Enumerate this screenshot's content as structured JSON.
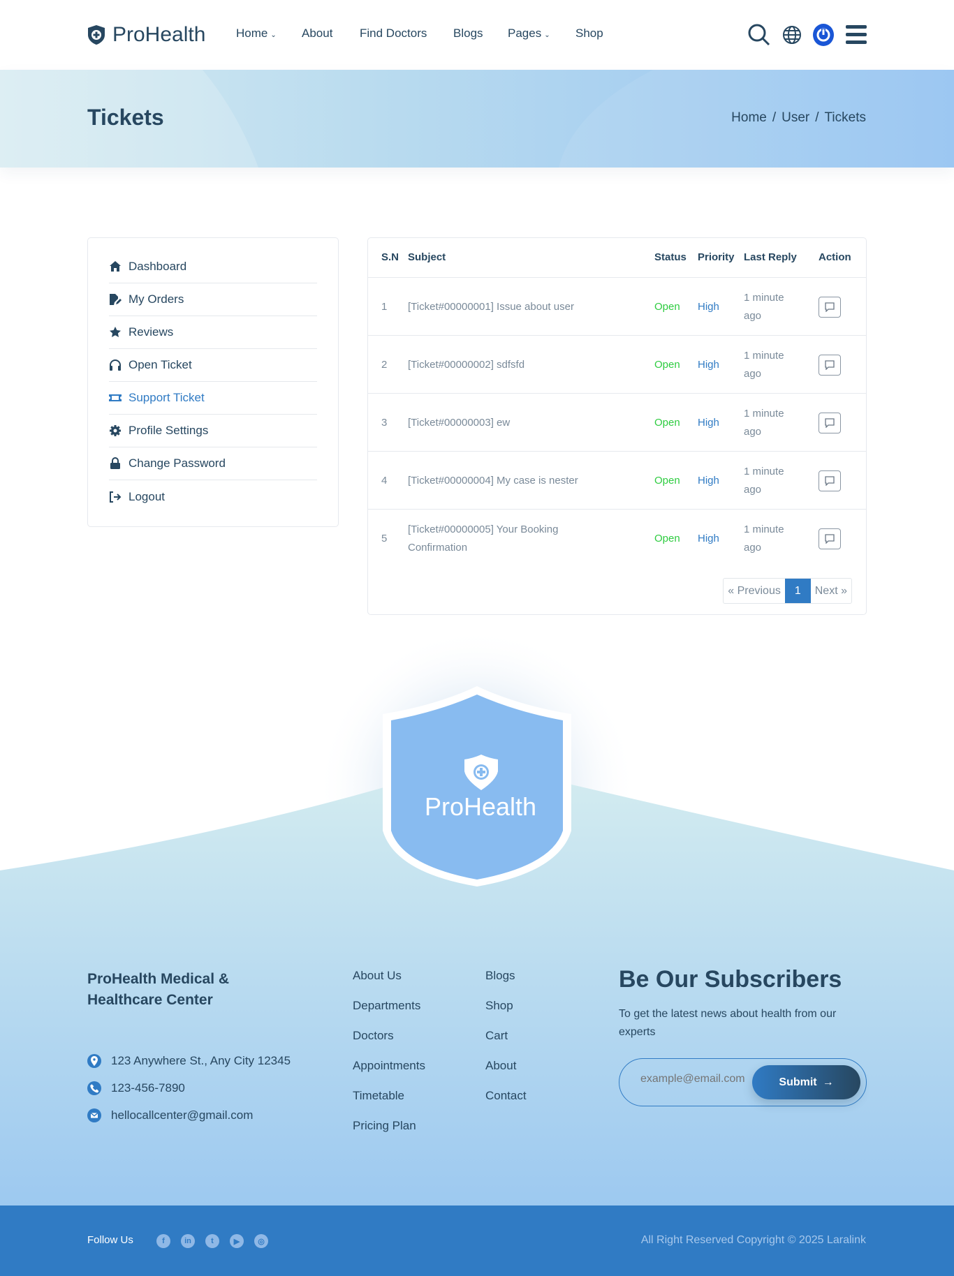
{
  "header": {
    "brand": "ProHealth",
    "nav": [
      {
        "label": "Home",
        "dropdown": true
      },
      {
        "label": "About"
      },
      {
        "label": "Find Doctors"
      },
      {
        "label": "Blogs"
      },
      {
        "label": "Pages",
        "dropdown": true
      },
      {
        "label": "Shop"
      }
    ],
    "icons": [
      "search-icon",
      "globe-icon",
      "power-icon",
      "menu-icon"
    ]
  },
  "banner": {
    "title": "Tickets",
    "breadcrumb": [
      "Home",
      "User",
      "Tickets"
    ],
    "separator": "/"
  },
  "sidebar": {
    "items": [
      {
        "label": "Dashboard",
        "icon": "home-icon"
      },
      {
        "label": "My Orders",
        "icon": "file-edit-icon"
      },
      {
        "label": "Reviews",
        "icon": "star-icon"
      },
      {
        "label": "Open Ticket",
        "icon": "headphones-icon"
      },
      {
        "label": "Support Ticket",
        "icon": "ticket-icon",
        "active": true
      },
      {
        "label": "Profile Settings",
        "icon": "gear-icon"
      },
      {
        "label": "Change Password",
        "icon": "lock-icon"
      },
      {
        "label": "Logout",
        "icon": "logout-icon"
      }
    ]
  },
  "table": {
    "headers": [
      "S.N",
      "Subject",
      "Status",
      "Priority",
      "Last Reply",
      "Action"
    ],
    "rows": [
      {
        "sn": "1",
        "subject": "[Ticket#00000001] Issue about user",
        "status": "Open",
        "priority": "High",
        "last_reply": "1 minute ago"
      },
      {
        "sn": "2",
        "subject": "[Ticket#00000002] sdfsfd",
        "status": "Open",
        "priority": "High",
        "last_reply": "1 minute ago"
      },
      {
        "sn": "3",
        "subject": "[Ticket#00000003] ew",
        "status": "Open",
        "priority": "High",
        "last_reply": "1 minute ago"
      },
      {
        "sn": "4",
        "subject": "[Ticket#00000004] My case is nester",
        "status": "Open",
        "priority": "High",
        "last_reply": "1 minute ago"
      },
      {
        "sn": "5",
        "subject": "[Ticket#00000005] Your Booking Confirmation",
        "status": "Open",
        "priority": "High",
        "last_reply": "1 minute ago"
      }
    ],
    "pagination": {
      "previous": "« Previous",
      "current": "1",
      "next": "Next »"
    }
  },
  "footer": {
    "shield_brand": "ProHealth",
    "company": "ProHealth Medical & Healthcare Center",
    "contacts": [
      {
        "icon": "location-icon",
        "text": "123 Anywhere St., Any City 12345"
      },
      {
        "icon": "phone-icon",
        "text": "123-456-7890"
      },
      {
        "icon": "email-icon",
        "text": "hellocallcenter@gmail.com"
      }
    ],
    "links_col1": [
      "About Us",
      "Departments",
      "Doctors",
      "Appointments",
      "Timetable",
      "Pricing Plan"
    ],
    "links_col2": [
      "Blogs",
      "Shop",
      "Cart",
      "About",
      "Contact"
    ],
    "subscribe": {
      "title": "Be Our Subscribers",
      "text": "To get the latest news about health from our experts",
      "placeholder": "example@email.com",
      "button": "Submit"
    },
    "follow_label": "Follow Us",
    "socials": [
      "facebook-icon",
      "linkedin-icon",
      "twitter-icon",
      "youtube-icon",
      "instagram-icon"
    ],
    "copyright": "All Right Reserved Copyright © 2025 Laralink"
  },
  "colors": {
    "primary": "#307bc4",
    "dark": "#274760",
    "open": "#2ecc40",
    "accent_power": "#1a56d6"
  }
}
